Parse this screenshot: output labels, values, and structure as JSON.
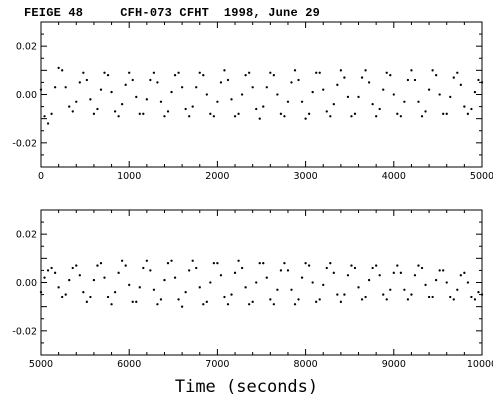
{
  "chart_data": [
    {
      "type": "scatter",
      "title": "FEIGE 48     CFH-073 CFHT  1998, June 29",
      "xlabel": "Time (seconds)",
      "ylabel": "",
      "xlim": [
        0,
        5000
      ],
      "ylim": [
        -0.03,
        0.03
      ],
      "xticks": [
        "0",
        "1000",
        "2000",
        "3000",
        "4000",
        "5000"
      ],
      "yticks": [
        "0.02",
        "0.00",
        "-0.02"
      ],
      "series": [
        {
          "x": [
            0,
            40,
            80,
            120,
            160,
            200,
            240,
            280,
            320,
            360,
            400,
            440,
            480,
            520,
            560,
            600,
            640,
            680,
            720,
            760,
            800,
            840,
            880,
            920,
            960,
            1000,
            1040,
            1080,
            1120,
            1160,
            1200,
            1240,
            1280,
            1320,
            1360,
            1400,
            1440,
            1480,
            1520,
            1560,
            1600,
            1640,
            1680,
            1720,
            1760,
            1800,
            1840,
            1880,
            1920,
            1960,
            2000,
            2040,
            2080,
            2120,
            2160,
            2200,
            2240,
            2280,
            2320,
            2360,
            2400,
            2440,
            2480,
            2520,
            2560,
            2600,
            2640,
            2680,
            2720,
            2760,
            2800,
            2840,
            2880,
            2920,
            2960,
            3000,
            3040,
            3080,
            3120,
            3160,
            3200,
            3240,
            3280,
            3320,
            3360,
            3400,
            3440,
            3480,
            3520,
            3560,
            3600,
            3640,
            3680,
            3720,
            3760,
            3800,
            3840,
            3880,
            3920,
            3960,
            4000,
            4040,
            4080,
            4120,
            4160,
            4200,
            4240,
            4280,
            4320,
            4360,
            4400,
            4440,
            4480,
            4520,
            4560,
            4600,
            4640,
            4680,
            4720,
            4760,
            4800,
            4840,
            4880,
            4920,
            4960,
            5000
          ],
          "y": [
            0.002,
            -0.009,
            -0.012,
            -0.008,
            0.003,
            0.011,
            0.01,
            0.003,
            -0.005,
            -0.007,
            -0.003,
            0.005,
            0.009,
            0.006,
            -0.002,
            -0.008,
            -0.006,
            0.002,
            0.009,
            0.008,
            0.001,
            -0.007,
            -0.009,
            -0.004,
            0.004,
            0.009,
            0.006,
            -0.001,
            -0.008,
            -0.008,
            -0.002,
            0.006,
            0.009,
            0.005,
            -0.003,
            -0.009,
            -0.007,
            0.001,
            0.008,
            0.009,
            0.003,
            -0.006,
            -0.009,
            -0.005,
            0.003,
            0.009,
            0.008,
            0.0,
            -0.008,
            -0.009,
            -0.003,
            0.005,
            0.01,
            0.006,
            -0.002,
            -0.009,
            -0.008,
            0.0,
            0.008,
            0.009,
            0.003,
            -0.006,
            -0.01,
            -0.005,
            0.003,
            0.009,
            0.008,
            0.0,
            -0.008,
            -0.009,
            -0.003,
            0.005,
            0.01,
            0.006,
            -0.003,
            -0.01,
            -0.008,
            0.001,
            0.009,
            0.009,
            0.002,
            -0.007,
            -0.009,
            -0.004,
            0.004,
            0.01,
            0.007,
            -0.001,
            -0.009,
            -0.008,
            -0.001,
            0.007,
            0.01,
            0.005,
            -0.004,
            -0.009,
            -0.006,
            0.002,
            0.009,
            0.008,
            0.0,
            -0.008,
            -0.009,
            -0.003,
            0.006,
            0.01,
            0.006,
            -0.003,
            -0.009,
            -0.007,
            0.002,
            0.01,
            0.008,
            0.0,
            -0.008,
            -0.008,
            -0.001,
            0.007,
            0.009,
            0.004,
            -0.005,
            -0.008,
            -0.006,
            0.001,
            0.006,
            0.005
          ]
        }
      ]
    },
    {
      "type": "scatter",
      "title": "",
      "xlabel": "Time (seconds)",
      "ylabel": "",
      "xlim": [
        5000,
        10000
      ],
      "ylim": [
        -0.03,
        0.03
      ],
      "xticks": [
        "5000",
        "6000",
        "7000",
        "8000",
        "9000",
        "10000"
      ],
      "yticks": [
        "0.02",
        "0.00",
        "-0.02"
      ],
      "series": [
        {
          "x": [
            5000,
            5040,
            5080,
            5120,
            5160,
            5200,
            5240,
            5280,
            5320,
            5360,
            5400,
            5440,
            5480,
            5520,
            5560,
            5600,
            5640,
            5680,
            5720,
            5760,
            5800,
            5840,
            5880,
            5920,
            5960,
            6000,
            6040,
            6080,
            6120,
            6160,
            6200,
            6240,
            6280,
            6320,
            6360,
            6400,
            6440,
            6480,
            6520,
            6560,
            6600,
            6640,
            6680,
            6720,
            6760,
            6800,
            6840,
            6880,
            6920,
            6960,
            7000,
            7040,
            7080,
            7120,
            7160,
            7200,
            7240,
            7280,
            7320,
            7360,
            7400,
            7440,
            7480,
            7520,
            7560,
            7600,
            7640,
            7680,
            7720,
            7760,
            7800,
            7840,
            7880,
            7920,
            7960,
            8000,
            8040,
            8080,
            8120,
            8160,
            8200,
            8240,
            8280,
            8320,
            8360,
            8400,
            8440,
            8480,
            8520,
            8560,
            8600,
            8640,
            8680,
            8720,
            8760,
            8800,
            8840,
            8880,
            8920,
            8960,
            9000,
            9040,
            9080,
            9120,
            9160,
            9200,
            9240,
            9280,
            9320,
            9360,
            9400,
            9440,
            9480,
            9520,
            9560,
            9600,
            9640,
            9680,
            9720,
            9760,
            9800,
            9840,
            9880,
            9920,
            9960,
            10000
          ],
          "y": [
            -0.004,
            0.002,
            0.005,
            0.006,
            0.004,
            -0.002,
            -0.006,
            -0.005,
            0.001,
            0.006,
            0.007,
            0.003,
            -0.004,
            -0.008,
            -0.006,
            0.001,
            0.007,
            0.008,
            0.002,
            -0.006,
            -0.009,
            -0.004,
            0.004,
            0.009,
            0.007,
            -0.001,
            -0.008,
            -0.008,
            -0.002,
            0.006,
            0.009,
            0.005,
            -0.003,
            -0.009,
            -0.007,
            0.001,
            0.008,
            0.009,
            0.002,
            -0.007,
            -0.01,
            -0.004,
            0.005,
            0.009,
            0.006,
            -0.002,
            -0.009,
            -0.008,
            0.0,
            0.008,
            0.008,
            0.003,
            -0.006,
            -0.009,
            -0.005,
            0.004,
            0.009,
            0.006,
            -0.002,
            -0.009,
            -0.008,
            0.0,
            0.008,
            0.008,
            0.002,
            -0.007,
            -0.009,
            -0.003,
            0.005,
            0.008,
            0.005,
            -0.003,
            -0.009,
            -0.007,
            0.002,
            0.008,
            0.007,
            0.0,
            -0.008,
            -0.007,
            -0.001,
            0.006,
            0.008,
            0.004,
            -0.005,
            -0.008,
            -0.005,
            0.003,
            0.007,
            0.006,
            -0.002,
            -0.007,
            -0.006,
            0.001,
            0.006,
            0.007,
            0.003,
            -0.005,
            -0.007,
            -0.003,
            0.004,
            0.007,
            0.004,
            -0.003,
            -0.007,
            -0.005,
            0.003,
            0.007,
            0.006,
            -0.001,
            -0.006,
            -0.006,
            0.001,
            0.005,
            0.005,
            0.0,
            -0.006,
            -0.007,
            -0.003,
            0.003,
            0.004,
            0.0,
            -0.006,
            -0.007,
            -0.004,
            -0.005
          ]
        }
      ]
    }
  ]
}
